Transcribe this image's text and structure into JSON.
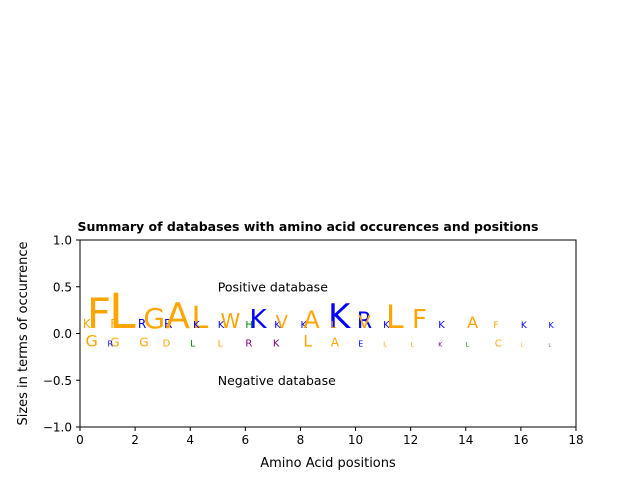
{
  "chart_data": {
    "type": "scatter",
    "title": "Summary of databases with amino acid occurences and positions",
    "xlabel": "Amino Acid positions",
    "ylabel": "Sizes in terms of occurrence",
    "xlim": [
      0,
      18
    ],
    "ylim": [
      -1.0,
      1.0
    ],
    "xticks": [
      "0",
      "2",
      "4",
      "6",
      "8",
      "10",
      "12",
      "14",
      "16",
      "18"
    ],
    "yticks": [
      "−1.0",
      "−0.5",
      "0.0",
      "0.5",
      "1.0"
    ],
    "grid": false,
    "legend": "none",
    "annotations": [
      {
        "text": "Positive database",
        "x": 5.0,
        "y": 0.5
      },
      {
        "text": "Negative database",
        "x": 5.0,
        "y": -0.5
      }
    ],
    "colors": {
      "hydrophobic": "#ffa500",
      "positive": "#0000ff",
      "polar": "#008000",
      "acidic": "#ff0000",
      "other": "#800080"
    },
    "series": [
      {
        "name": "Positive database",
        "letters": [
          {
            "x": 0.1,
            "y": 0.06,
            "letter": "K",
            "color": "#ffa500",
            "size": 12
          },
          {
            "x": 0.25,
            "y": 0.06,
            "letter": "F",
            "color": "#ffa500",
            "size": 42
          },
          {
            "x": 1.05,
            "y": 0.06,
            "letter": "L",
            "color": "#ffa500",
            "size": 48
          },
          {
            "x": 1.1,
            "y": 0.06,
            "letter": "F",
            "color": "#ffa500",
            "size": 12
          },
          {
            "x": 2.1,
            "y": 0.06,
            "letter": "R",
            "color": "#0000ff",
            "size": 12
          },
          {
            "x": 2.3,
            "y": 0.06,
            "letter": "G",
            "color": "#ffa500",
            "size": 28
          },
          {
            "x": 3.05,
            "y": 0.06,
            "letter": "R",
            "color": "#0000ff",
            "size": 12
          },
          {
            "x": 3.1,
            "y": 0.06,
            "letter": "A",
            "color": "#ffa500",
            "size": 36
          },
          {
            "x": 4.05,
            "y": 0.06,
            "letter": "L",
            "color": "#ffa500",
            "size": 30
          },
          {
            "x": 4.1,
            "y": 0.06,
            "letter": "K",
            "color": "#0000ff",
            "size": 10
          },
          {
            "x": 5.0,
            "y": 0.06,
            "letter": "K",
            "color": "#0000ff",
            "size": 10
          },
          {
            "x": 5.1,
            "y": 0.06,
            "letter": "W",
            "color": "#ffa500",
            "size": 20
          },
          {
            "x": 6.0,
            "y": 0.06,
            "letter": "H",
            "color": "#008000",
            "size": 10
          },
          {
            "x": 6.15,
            "y": 0.06,
            "letter": "K",
            "color": "#0000ff",
            "size": 26
          },
          {
            "x": 7.05,
            "y": 0.06,
            "letter": "K",
            "color": "#0000ff",
            "size": 10
          },
          {
            "x": 7.1,
            "y": 0.06,
            "letter": "V",
            "color": "#ffa500",
            "size": 18
          },
          {
            "x": 8.0,
            "y": 0.06,
            "letter": "K",
            "color": "#0000ff",
            "size": 10
          },
          {
            "x": 8.1,
            "y": 0.06,
            "letter": "A",
            "color": "#ffa500",
            "size": 24
          },
          {
            "x": 9.0,
            "y": 0.06,
            "letter": "K",
            "color": "#0000ff",
            "size": 34
          },
          {
            "x": 9.1,
            "y": 0.06,
            "letter": "L",
            "color": "#ffa500",
            "size": 10
          },
          {
            "x": 10.05,
            "y": 0.06,
            "letter": "R",
            "color": "#0000ff",
            "size": 22
          },
          {
            "x": 10.1,
            "y": 0.06,
            "letter": "V",
            "color": "#ffa500",
            "size": 18
          },
          {
            "x": 11.0,
            "y": 0.06,
            "letter": "K",
            "color": "#0000ff",
            "size": 10
          },
          {
            "x": 11.1,
            "y": 0.06,
            "letter": "L",
            "color": "#ffa500",
            "size": 32
          },
          {
            "x": 12.05,
            "y": 0.06,
            "letter": "F",
            "color": "#ffa500",
            "size": 26
          },
          {
            "x": 13.0,
            "y": 0.06,
            "letter": "K",
            "color": "#0000ff",
            "size": 10
          },
          {
            "x": 14.05,
            "y": 0.06,
            "letter": "A",
            "color": "#ffa500",
            "size": 16
          },
          {
            "x": 15.0,
            "y": 0.06,
            "letter": "F",
            "color": "#ffa500",
            "size": 9
          },
          {
            "x": 16.0,
            "y": 0.06,
            "letter": "K",
            "color": "#0000ff",
            "size": 9
          },
          {
            "x": 17.0,
            "y": 0.06,
            "letter": "K",
            "color": "#0000ff",
            "size": 8
          }
        ]
      },
      {
        "name": "Negative database",
        "letters": [
          {
            "x": 0.2,
            "y": -0.14,
            "letter": "G",
            "color": "#ffa500",
            "size": 16
          },
          {
            "x": 1.1,
            "y": -0.14,
            "letter": "G",
            "color": "#ffa500",
            "size": 12
          },
          {
            "x": 1.0,
            "y": -0.14,
            "letter": "R",
            "color": "#0000ff",
            "size": 8
          },
          {
            "x": 2.15,
            "y": -0.14,
            "letter": "G",
            "color": "#ffa500",
            "size": 12
          },
          {
            "x": 3.0,
            "y": -0.14,
            "letter": "D",
            "color": "#ffa500",
            "size": 10
          },
          {
            "x": 4.0,
            "y": -0.14,
            "letter": "L",
            "color": "#008000",
            "size": 9
          },
          {
            "x": 5.0,
            "y": -0.14,
            "letter": "L",
            "color": "#ffa500",
            "size": 9
          },
          {
            "x": 6.0,
            "y": -0.14,
            "letter": "R",
            "color": "#800080",
            "size": 10
          },
          {
            "x": 7.0,
            "y": -0.14,
            "letter": "K",
            "color": "#800080",
            "size": 10
          },
          {
            "x": 8.1,
            "y": -0.14,
            "letter": "L",
            "color": "#ffa500",
            "size": 16
          },
          {
            "x": 9.1,
            "y": -0.14,
            "letter": "A",
            "color": "#ffa500",
            "size": 12
          },
          {
            "x": 10.1,
            "y": -0.14,
            "letter": "E",
            "color": "#0000ff",
            "size": 8
          },
          {
            "x": 11.0,
            "y": -0.14,
            "letter": "L",
            "color": "#ffa500",
            "size": 7
          },
          {
            "x": 12.0,
            "y": -0.14,
            "letter": "L",
            "color": "#ffa500",
            "size": 6
          },
          {
            "x": 13.0,
            "y": -0.14,
            "letter": "K",
            "color": "#800080",
            "size": 6
          },
          {
            "x": 14.0,
            "y": -0.14,
            "letter": "L",
            "color": "#008000",
            "size": 6
          },
          {
            "x": 15.05,
            "y": -0.14,
            "letter": "C",
            "color": "#ffa500",
            "size": 10
          },
          {
            "x": 16.0,
            "y": -0.14,
            "letter": "L",
            "color": "#ffa500",
            "size": 5
          },
          {
            "x": 17.0,
            "y": -0.14,
            "letter": "L",
            "color": "#800080",
            "size": 4
          }
        ]
      }
    ]
  }
}
